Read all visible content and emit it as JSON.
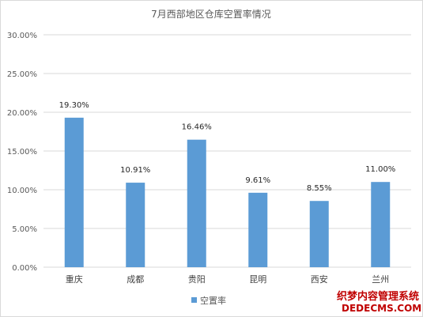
{
  "chart_data": {
    "type": "bar",
    "title": "7月西部地区仓库空置率情况",
    "categories": [
      "重庆",
      "成都",
      "贵阳",
      "昆明",
      "西安",
      "兰州"
    ],
    "series": [
      {
        "name": "空置率",
        "values": [
          19.3,
          10.91,
          16.46,
          9.61,
          8.55,
          11.0
        ],
        "color": "#5b9bd5"
      }
    ],
    "data_labels": [
      "19.30%",
      "10.91%",
      "16.46%",
      "9.61%",
      "8.55%",
      "11.00%"
    ],
    "ylim": [
      0,
      30
    ],
    "yticks": [
      0,
      5,
      10,
      15,
      20,
      25,
      30
    ],
    "ytick_labels": [
      "0.00%",
      "5.00%",
      "10.00%",
      "15.00%",
      "20.00%",
      "25.00%",
      "30.00%"
    ],
    "grid": true,
    "legend": "bottom"
  },
  "watermark": {
    "line1": "织梦内容管理系统",
    "line2": "DEDECMS.COM"
  }
}
